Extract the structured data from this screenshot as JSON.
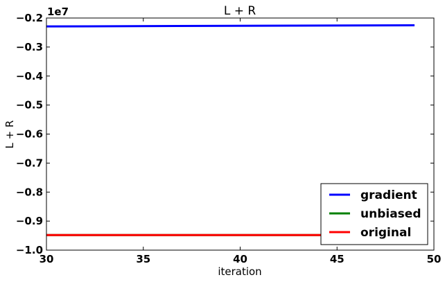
{
  "chart_data": {
    "type": "line",
    "title": "L + R",
    "xlabel": "iteration",
    "ylabel": "L + R",
    "offset_label": "1e7",
    "xlim": [
      30,
      50
    ],
    "ylim": [
      -1.0,
      -0.2
    ],
    "xticks": [
      30,
      35,
      40,
      45,
      50
    ],
    "xtick_labels": [
      "30",
      "35",
      "40",
      "45",
      "50"
    ],
    "yticks": [
      -1.0,
      -0.9,
      -0.8,
      -0.7,
      -0.6,
      -0.5,
      -0.4,
      -0.3,
      -0.2
    ],
    "ytick_labels": [
      "−1.0",
      "−0.9",
      "−0.8",
      "−0.7",
      "−0.6",
      "−0.5",
      "−0.4",
      "−0.3",
      "−0.2"
    ],
    "grid": false,
    "legend_position": "lower-right",
    "series": [
      {
        "name": "gradient",
        "color": "#0000ff",
        "x": [
          30,
          49
        ],
        "y": [
          -0.229,
          -0.225
        ]
      },
      {
        "name": "unbiased",
        "color": "#008000",
        "x": [
          30,
          49
        ],
        "y": [
          -0.948,
          -0.948
        ]
      },
      {
        "name": "original",
        "color": "#ff0000",
        "x": [
          30,
          49
        ],
        "y": [
          -0.948,
          -0.948
        ]
      }
    ]
  }
}
